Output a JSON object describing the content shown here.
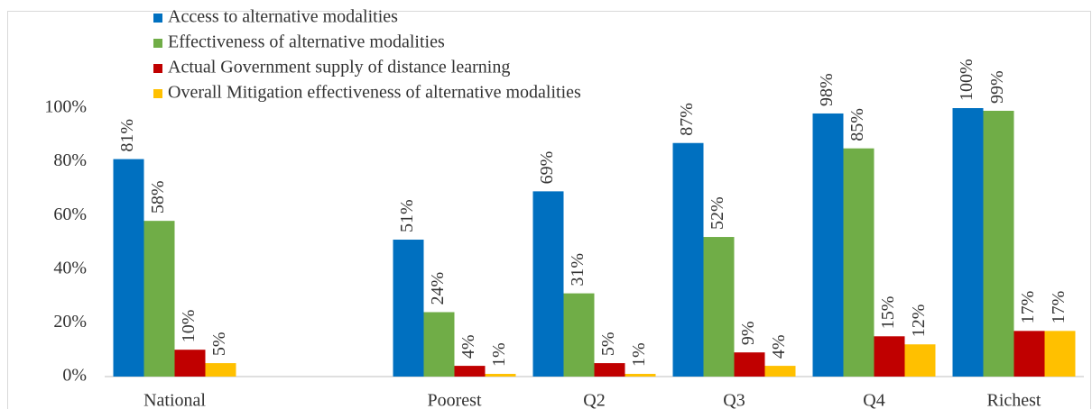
{
  "chart_data": {
    "type": "bar",
    "categories": [
      "National",
      null,
      "Poorest",
      "Q2",
      "Q3",
      "Q4",
      "Richest"
    ],
    "series": [
      {
        "name": "Access to alternative modalities",
        "color": "#0070c0",
        "values": [
          81,
          null,
          51,
          69,
          87,
          98,
          100
        ],
        "value_labels": [
          "81%",
          null,
          "51%",
          "69%",
          "87%",
          "98%",
          "100%"
        ]
      },
      {
        "name": "Effectiveness of alternative modalities",
        "color": "#70ad47",
        "values": [
          58,
          null,
          24,
          31,
          52,
          85,
          99
        ],
        "value_labels": [
          "58%",
          null,
          "24%",
          "31%",
          "52%",
          "85%",
          "99%"
        ]
      },
      {
        "name": "Actual Government supply of distance learning",
        "color": "#c00000",
        "values": [
          10,
          null,
          4,
          5,
          9,
          15,
          17
        ],
        "value_labels": [
          "10%",
          null,
          "4%",
          "5%",
          "9%",
          "15%",
          "17%"
        ]
      },
      {
        "name": "Overall Mitigation effectiveness of alternative modalities",
        "color": "#ffc000",
        "values": [
          5,
          null,
          1,
          1,
          4,
          12,
          17
        ],
        "value_labels": [
          "5%",
          null,
          "1%",
          "1%",
          "4%",
          "12%",
          "17%"
        ]
      }
    ],
    "ylim": [
      0,
      100
    ],
    "yticks": [
      {
        "value": 0,
        "label": "0%"
      },
      {
        "value": 20,
        "label": "20%"
      },
      {
        "value": 40,
        "label": "40%"
      },
      {
        "value": 60,
        "label": "60%"
      },
      {
        "value": 80,
        "label": "80%"
      },
      {
        "value": 100,
        "label": "100%"
      }
    ],
    "legend": "top-left"
  }
}
